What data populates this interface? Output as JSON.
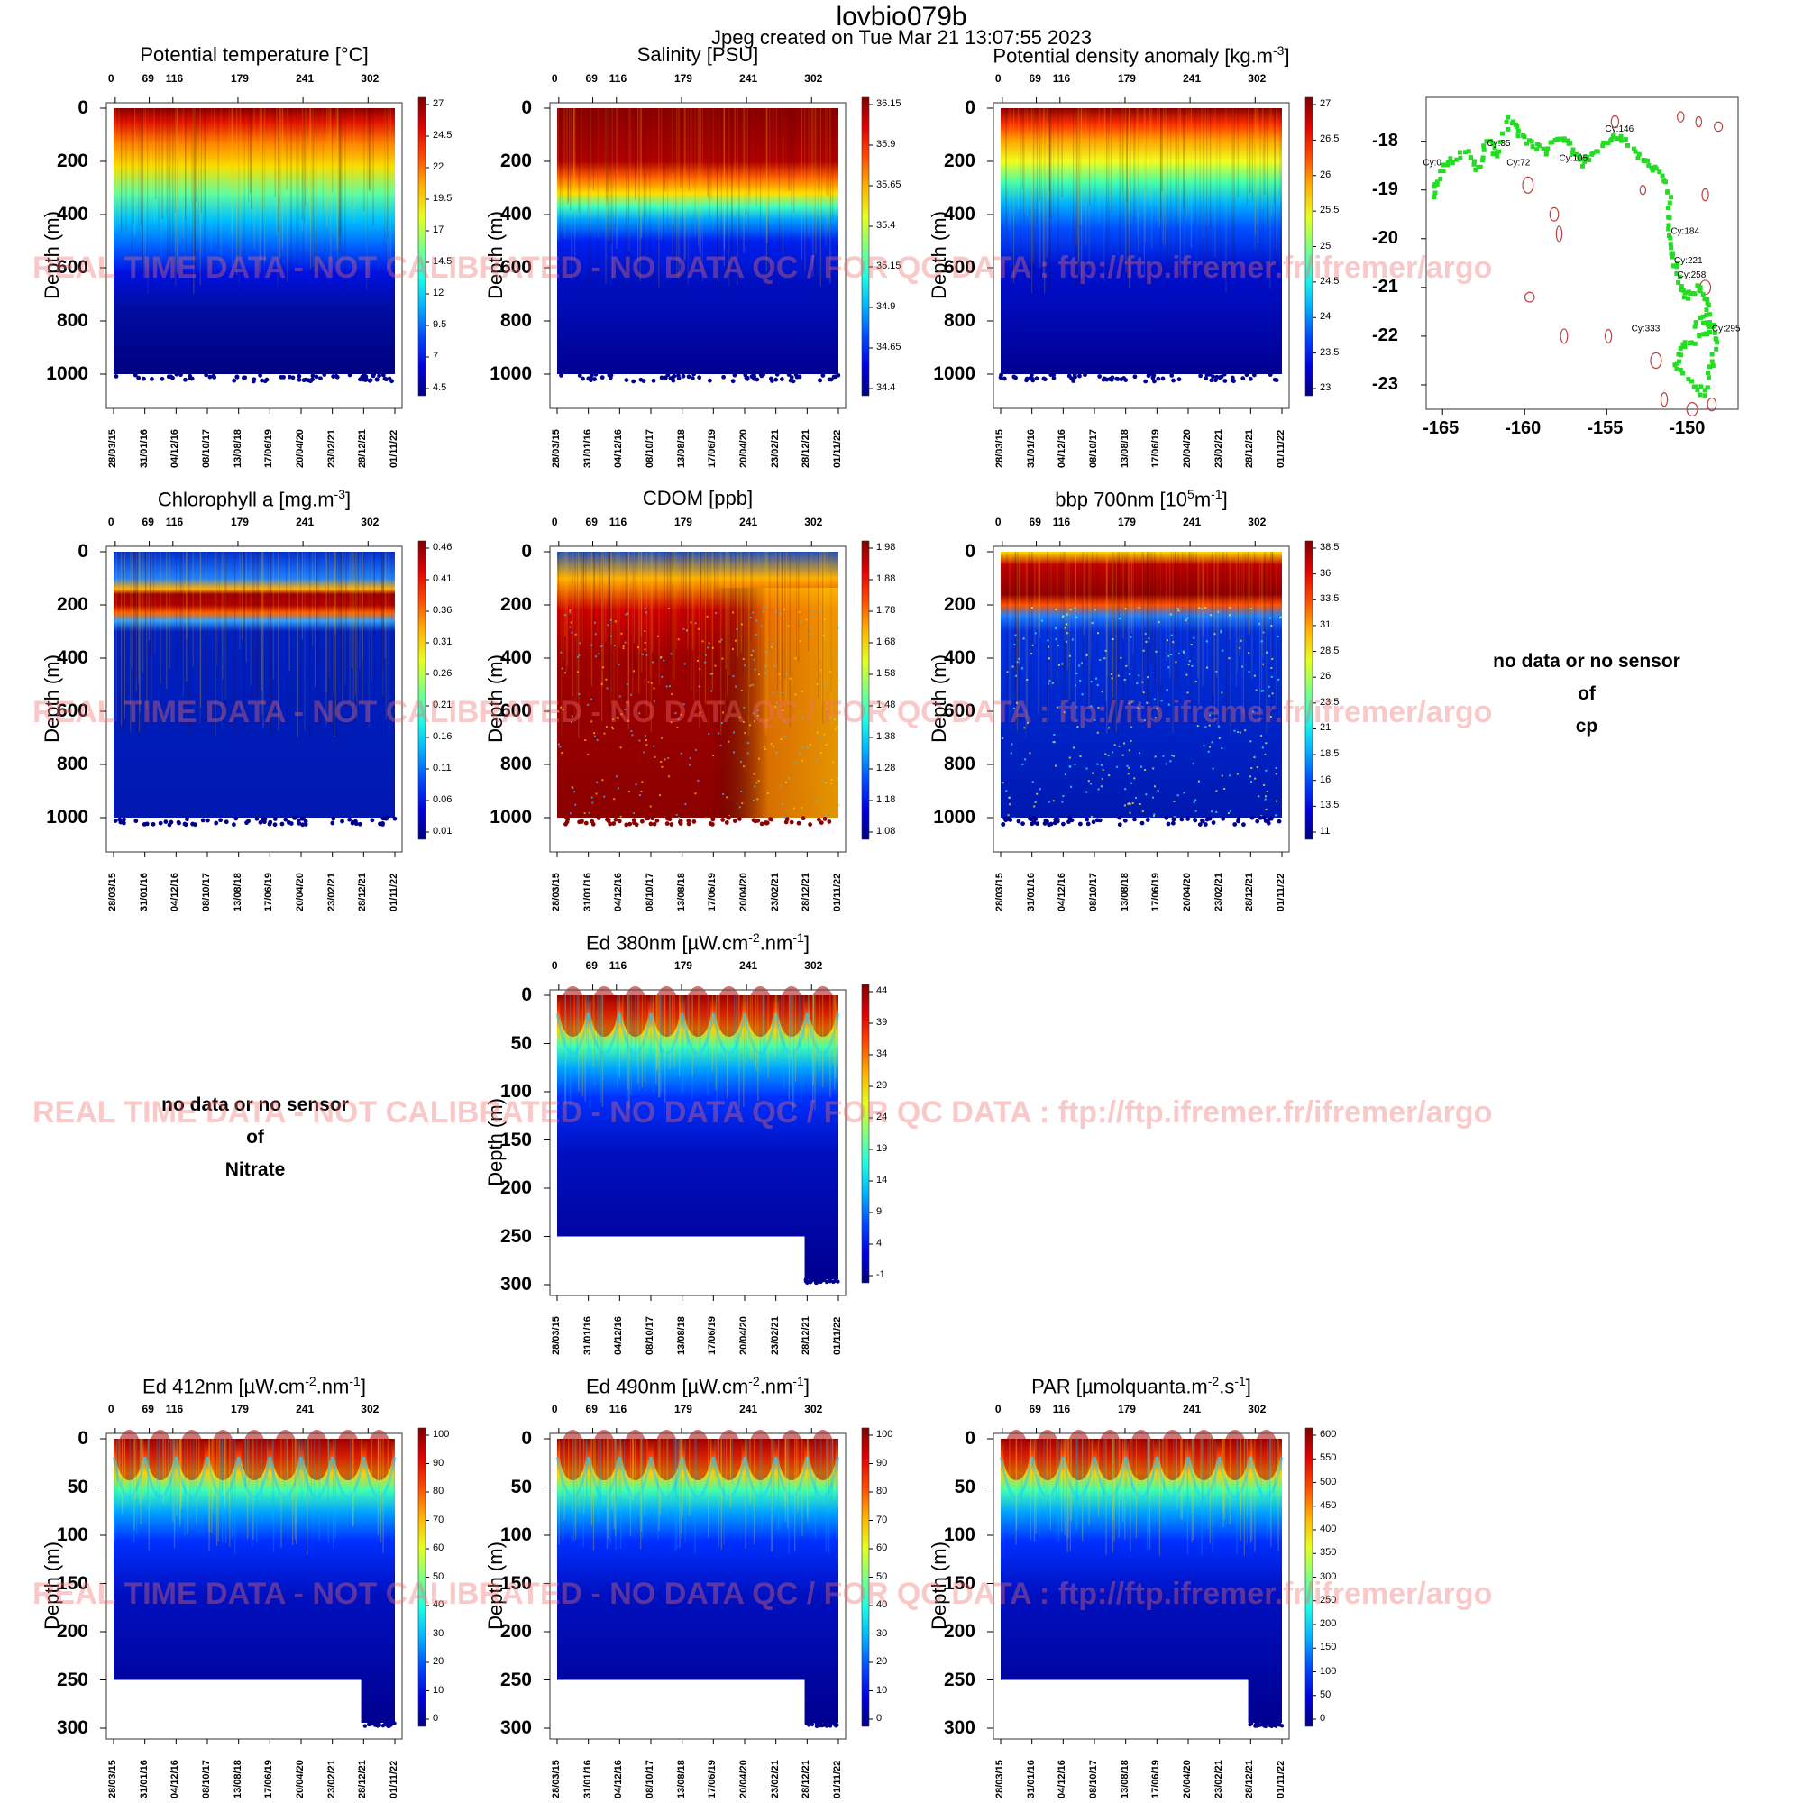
{
  "header": {
    "title": "lovbio079b",
    "subtitle": "Jpeg created on  Tue Mar 21 13:07:55 2023"
  },
  "watermark": "REAL TIME DATA - NOT CALIBRATED - NO DATA QC /  FOR QC DATA : ftp://ftp.ifremer.fr/ifremer/argo",
  "common": {
    "ylabel": "Depth (m)",
    "cycles": [
      "0",
      "69",
      "116",
      "179",
      "241",
      "302"
    ],
    "dates": [
      "28/03/15",
      "31/01/16",
      "04/12/16",
      "08/10/17",
      "13/08/18",
      "17/06/19",
      "20/04/20",
      "23/02/21",
      "28/12/21",
      "01/11/22"
    ],
    "deep_ticks": [
      "0",
      "200",
      "400",
      "600",
      "800",
      "1000"
    ],
    "shallow_ticks": [
      "0",
      "50",
      "100",
      "150",
      "200",
      "250",
      "300"
    ]
  },
  "nodata": [
    {
      "lines": [
        "no data or no sensor",
        "of",
        "cp"
      ]
    },
    {
      "lines": [
        "no data or no sensor",
        "of",
        "Nitrate"
      ]
    }
  ],
  "chart_data": [
    {
      "type": "heatmap",
      "title": "Potential temperature [°C]",
      "xlabel": "",
      "ylabel": "Depth (m)",
      "ylim": [
        1000,
        0
      ],
      "colorbar": [
        "27",
        "24.5",
        "22",
        "19.5",
        "17",
        "14.5",
        "12",
        "9.5",
        "7",
        "4.5"
      ]
    },
    {
      "type": "heatmap",
      "title": "Salinity [PSU]",
      "xlabel": "",
      "ylabel": "Depth (m)",
      "ylim": [
        1000,
        0
      ],
      "colorbar": [
        "36.15",
        "35.9",
        "35.65",
        "35.4",
        "35.15",
        "34.9",
        "34.65",
        "34.4"
      ]
    },
    {
      "type": "heatmap",
      "title": "Potential density anomaly [kg.m^-3]",
      "xlabel": "",
      "ylabel": "Depth (m)",
      "ylim": [
        1000,
        0
      ],
      "colorbar": [
        "27",
        "26.5",
        "26",
        "25.5",
        "25",
        "24.5",
        "24",
        "23.5",
        "23"
      ]
    },
    {
      "type": "heatmap",
      "title": "Chlorophyll a [mg.m^-3]",
      "xlabel": "",
      "ylabel": "Depth (m)",
      "ylim": [
        1000,
        0
      ],
      "colorbar": [
        "0.46",
        "0.41",
        "0.36",
        "0.31",
        "0.26",
        "0.21",
        "0.16",
        "0.11",
        "0.06",
        "0.01"
      ]
    },
    {
      "type": "heatmap",
      "title": "CDOM  [ppb]",
      "xlabel": "",
      "ylabel": "Depth (m)",
      "ylim": [
        1000,
        0
      ],
      "colorbar": [
        "1.98",
        "1.88",
        "1.78",
        "1.68",
        "1.58",
        "1.48",
        "1.38",
        "1.28",
        "1.18",
        "1.08"
      ]
    },
    {
      "type": "heatmap",
      "title": "bbp 700nm [10^5m^-1]",
      "xlabel": "",
      "ylabel": "Depth (m)",
      "ylim": [
        1000,
        0
      ],
      "colorbar": [
        "38.5",
        "36",
        "33.5",
        "31",
        "28.5",
        "26",
        "23.5",
        "21",
        "18.5",
        "16",
        "13.5",
        "11"
      ]
    },
    {
      "type": "heatmap",
      "title": "Ed 380nm [µW.cm^-2.nm^-1]",
      "xlabel": "",
      "ylabel": "Depth (m)",
      "ylim": [
        300,
        0
      ],
      "colorbar": [
        "44",
        "39",
        "34",
        "29",
        "24",
        "19",
        "14",
        "9",
        "4",
        "-1"
      ]
    },
    {
      "type": "heatmap",
      "title": "Ed 412nm [µW.cm^-2.nm^-1]",
      "xlabel": "",
      "ylabel": "Depth (m)",
      "ylim": [
        300,
        0
      ],
      "colorbar": [
        "100",
        "90",
        "80",
        "70",
        "60",
        "50",
        "40",
        "30",
        "20",
        "10",
        "0"
      ]
    },
    {
      "type": "heatmap",
      "title": "Ed 490nm [µW.cm^-2.nm^-1]",
      "xlabel": "",
      "ylabel": "Depth (m)",
      "ylim": [
        300,
        0
      ],
      "colorbar": [
        "100",
        "90",
        "80",
        "70",
        "60",
        "50",
        "40",
        "30",
        "20",
        "10",
        "0"
      ]
    },
    {
      "type": "heatmap",
      "title": "PAR [µmolquanta.m^-2.s^-1]",
      "xlabel": "",
      "ylabel": "Depth (m)",
      "ylim": [
        300,
        0
      ],
      "colorbar": [
        "600",
        "550",
        "500",
        "450",
        "400",
        "350",
        "300",
        "250",
        "200",
        "150",
        "100",
        "50",
        "0"
      ]
    },
    {
      "type": "scatter",
      "xlim": [
        -166,
        -147
      ],
      "ylim": [
        -23.5,
        -17.1
      ],
      "xticks": [
        "-165",
        "-160",
        "-155",
        "-150"
      ],
      "yticks": [
        "-18",
        "-19",
        "-20",
        "-21",
        "-22",
        "-23"
      ],
      "cycle_labels": [
        {
          "text": "Cy:0",
          "x": -166.2,
          "y": -18.5
        },
        {
          "text": "Cy:35",
          "x": -162.3,
          "y": -18.1
        },
        {
          "text": "Cy:72",
          "x": -161.1,
          "y": -18.5
        },
        {
          "text": "Cy:105",
          "x": -157.9,
          "y": -18.4
        },
        {
          "text": "Cy:146",
          "x": -155.1,
          "y": -17.8
        },
        {
          "text": "Cy:184",
          "x": -151.1,
          "y": -19.9
        },
        {
          "text": "Cy:221",
          "x": -150.9,
          "y": -20.5
        },
        {
          "text": "Cy:258",
          "x": -150.7,
          "y": -20.8
        },
        {
          "text": "Cy:333",
          "x": -153.5,
          "y": -21.9
        },
        {
          "text": "Cy:295",
          "x": -148.6,
          "y": -21.9
        }
      ]
    }
  ]
}
